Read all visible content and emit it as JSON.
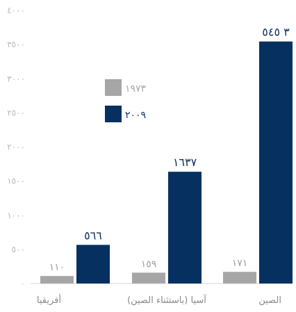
{
  "chart_data": {
    "type": "bar",
    "categories": [
      "أفريقيا",
      "آسيا (باستثناء الصين)",
      "الصين"
    ],
    "series": [
      {
        "name": "١٩٧٣",
        "values": [
          110,
          159,
          171
        ],
        "labels": [
          "١١٠",
          "١٥٩",
          "١٧١"
        ],
        "color": "#a6a6a6"
      },
      {
        "name": "٢٠٠٩",
        "values": [
          566,
          1637,
          3545
        ],
        "labels": [
          "٥٦٦",
          "١٦٣٧",
          "٣ ٥٤٥"
        ],
        "color": "#06305f"
      }
    ],
    "ylim": [
      0,
      4000
    ],
    "yticks": [
      {
        "value": 0,
        "label": "٠"
      },
      {
        "value": 500,
        "label": "٥٠٠"
      },
      {
        "value": 1000,
        "label": "١٠٠٠"
      },
      {
        "value": 1500,
        "label": "١٥٠٠"
      },
      {
        "value": 2000,
        "label": "٢٠٠٠"
      },
      {
        "value": 2500,
        "label": "٢٥٠٠"
      },
      {
        "value": 3000,
        "label": "٣٠٠٠"
      },
      {
        "value": 3500,
        "label": "٣٥٠٠"
      },
      {
        "value": 4000,
        "label": "٤٠٠٠"
      }
    ],
    "grid": false,
    "legend": "middle-left",
    "title": "",
    "xlabel": "",
    "ylabel": ""
  }
}
